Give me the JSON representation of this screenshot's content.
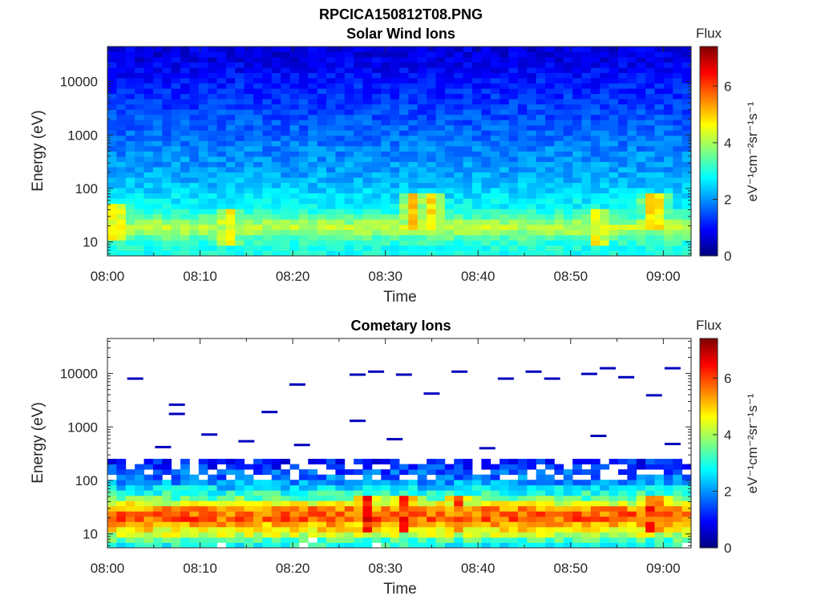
{
  "figure": {
    "filename": "RPCICA150812T08.PNG"
  },
  "chart_data": [
    {
      "type": "heatmap",
      "title": "Solar Wind Ions",
      "xlabel": "Time",
      "ylabel": "Energy (eV)",
      "x_ticks": [
        "08:00",
        "08:10",
        "08:20",
        "08:30",
        "08:40",
        "08:50",
        "09:00"
      ],
      "x_range_minutes": [
        0,
        63
      ],
      "y_scale": "log",
      "y_ticks": [
        "10",
        "100",
        "1000",
        "10000"
      ],
      "y_range": [
        5.5,
        45000
      ],
      "colorbar": {
        "title": "Flux",
        "label": "eV⁻¹cm⁻²sr⁻¹s⁻¹",
        "range": [
          0,
          7.4
        ],
        "ticks": [
          "0",
          "2",
          "4",
          "6"
        ],
        "colormap": "jet"
      },
      "flux_profile": {
        "energy_eV": [
          7,
          10,
          15,
          20,
          30,
          45,
          70,
          100,
          200,
          500,
          1000,
          3000,
          10000,
          30000
        ],
        "flux": [
          2.9,
          3.1,
          3.8,
          4.2,
          3.3,
          2.8,
          2.6,
          2.4,
          2.1,
          1.9,
          1.7,
          1.4,
          1.1,
          0.7
        ]
      },
      "hot_spots": [
        {
          "time_min": 1,
          "energy_eV": 25,
          "flux": 5.1
        },
        {
          "time_min": 13,
          "energy_eV": 20,
          "flux": 5.0
        },
        {
          "time_min": 33,
          "energy_eV": 35,
          "flux": 5.2
        },
        {
          "time_min": 35,
          "energy_eV": 40,
          "flux": 4.8
        },
        {
          "time_min": 53,
          "energy_eV": 20,
          "flux": 5.0
        },
        {
          "time_min": 59,
          "energy_eV": 35,
          "flux": 5.4
        }
      ]
    },
    {
      "type": "heatmap",
      "title": "Cometary Ions",
      "xlabel": "Time",
      "ylabel": "Energy (eV)",
      "x_ticks": [
        "08:00",
        "08:10",
        "08:20",
        "08:30",
        "08:40",
        "08:50",
        "09:00"
      ],
      "x_range_minutes": [
        0,
        63
      ],
      "y_scale": "log",
      "y_ticks": [
        "10",
        "100",
        "1000",
        "10000"
      ],
      "y_range": [
        5.5,
        45000
      ],
      "colorbar": {
        "title": "Flux",
        "label": "eV⁻¹cm⁻²sr⁻¹s⁻¹",
        "range": [
          0,
          7.4
        ],
        "ticks": [
          "0",
          "2",
          "4",
          "6"
        ],
        "colormap": "jet"
      },
      "flux_profile": {
        "energy_eV": [
          7,
          10,
          15,
          20,
          30,
          45,
          70,
          100,
          150,
          200
        ],
        "flux": [
          2.9,
          4.3,
          5.2,
          5.9,
          5.4,
          3.6,
          2.6,
          1.9,
          1.5,
          1.1
        ]
      },
      "hot_spots": [
        {
          "time_min": 28,
          "energy_eV": 25,
          "flux": 6.4
        },
        {
          "time_min": 32,
          "energy_eV": 25,
          "flux": 6.2
        },
        {
          "time_min": 38,
          "energy_eV": 25,
          "flux": 6.0
        },
        {
          "time_min": 59,
          "energy_eV": 25,
          "flux": 6.8
        }
      ],
      "sparse_counts": [
        {
          "time_min": 3,
          "energy_eV": 8000
        },
        {
          "time_min": 7.5,
          "energy_eV": 2600
        },
        {
          "time_min": 7.5,
          "energy_eV": 1750
        },
        {
          "time_min": 11,
          "energy_eV": 720
        },
        {
          "time_min": 17.5,
          "energy_eV": 1900
        },
        {
          "time_min": 20.5,
          "energy_eV": 6200
        },
        {
          "time_min": 27,
          "energy_eV": 1300
        },
        {
          "time_min": 27,
          "energy_eV": 9500
        },
        {
          "time_min": 29,
          "energy_eV": 10800
        },
        {
          "time_min": 32,
          "energy_eV": 9500
        },
        {
          "time_min": 35,
          "energy_eV": 4200
        },
        {
          "time_min": 38,
          "energy_eV": 10800
        },
        {
          "time_min": 43,
          "energy_eV": 8000
        },
        {
          "time_min": 46,
          "energy_eV": 10800
        },
        {
          "time_min": 48,
          "energy_eV": 8000
        },
        {
          "time_min": 52,
          "energy_eV": 9800
        },
        {
          "time_min": 54,
          "energy_eV": 12500
        },
        {
          "time_min": 56,
          "energy_eV": 8500
        },
        {
          "time_min": 59,
          "energy_eV": 3900
        },
        {
          "time_min": 61,
          "energy_eV": 12500
        },
        {
          "time_min": 6,
          "energy_eV": 420
        },
        {
          "time_min": 15,
          "energy_eV": 540
        },
        {
          "time_min": 21,
          "energy_eV": 460
        },
        {
          "time_min": 31,
          "energy_eV": 590
        },
        {
          "time_min": 41,
          "energy_eV": 400
        },
        {
          "time_min": 53,
          "energy_eV": 680
        },
        {
          "time_min": 61,
          "energy_eV": 480
        }
      ]
    }
  ]
}
